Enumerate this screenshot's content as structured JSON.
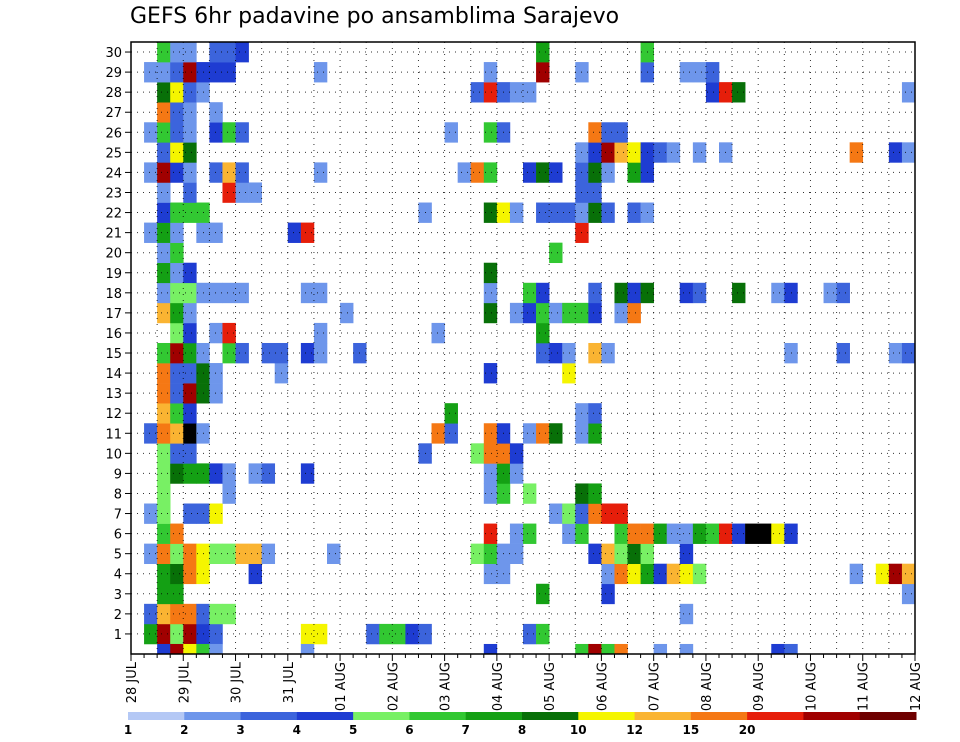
{
  "chart_data": {
    "type": "heatmap",
    "title": "GEFS 6hr padavine po ansamblima Sarajevo",
    "y_members": [
      1,
      2,
      3,
      4,
      5,
      6,
      7,
      8,
      9,
      10,
      11,
      12,
      13,
      14,
      15,
      16,
      17,
      18,
      19,
      20,
      21,
      22,
      23,
      24,
      25,
      26,
      27,
      28,
      29,
      30
    ],
    "ylim": [
      0,
      30
    ],
    "x_tick_labels": [
      "28 JUL",
      "29 JUL",
      "30 JUL",
      "31 JUL",
      "01 AUG",
      "02 AUG",
      "03 AUG",
      "04 AUG",
      "05 AUG",
      "06 AUG",
      "07 AUG",
      "08 AUG",
      "09 AUG",
      "10 AUG",
      "11 AUG",
      "12 AUG"
    ],
    "steps_per_day": 4,
    "total_steps": 60,
    "grid": true,
    "legend_position": "bottom",
    "colorbar": {
      "levels": [
        1,
        2,
        3,
        4,
        5,
        6,
        7,
        8,
        10,
        12,
        15,
        20
      ],
      "colors": [
        "#b4c8f5",
        "#6e96eb",
        "#3c64dc",
        "#1e3cd2",
        "#78f064",
        "#32c832",
        "#14a014",
        "#087008",
        "#f5f500",
        "#fab432",
        "#f57814",
        "#e61e0a",
        "#a00000",
        "#6e0000"
      ]
    },
    "cells": [
      [
        1,
        1,
        6
      ],
      [
        1,
        2,
        12
      ],
      [
        1,
        3,
        4
      ],
      [
        1,
        4,
        12
      ],
      [
        1,
        5,
        3
      ],
      [
        1,
        6,
        2
      ],
      [
        1,
        13,
        8
      ],
      [
        1,
        14,
        8
      ],
      [
        1,
        18,
        2
      ],
      [
        1,
        19,
        5
      ],
      [
        1,
        20,
        5
      ],
      [
        1,
        21,
        3
      ],
      [
        1,
        22,
        2
      ],
      [
        1,
        30,
        2
      ],
      [
        1,
        31,
        5
      ],
      [
        2,
        1,
        2
      ],
      [
        2,
        2,
        9
      ],
      [
        2,
        3,
        10
      ],
      [
        2,
        4,
        10
      ],
      [
        2,
        5,
        2
      ],
      [
        2,
        6,
        4
      ],
      [
        2,
        7,
        4
      ],
      [
        2,
        42,
        1
      ],
      [
        3,
        2,
        6
      ],
      [
        3,
        3,
        6
      ],
      [
        3,
        31,
        6
      ],
      [
        3,
        36,
        3
      ],
      [
        3,
        59,
        1
      ],
      [
        4,
        2,
        6
      ],
      [
        4,
        3,
        7
      ],
      [
        4,
        4,
        10
      ],
      [
        4,
        5,
        8
      ],
      [
        4,
        9,
        3
      ],
      [
        4,
        27,
        1
      ],
      [
        4,
        28,
        1
      ],
      [
        4,
        36,
        1
      ],
      [
        4,
        37,
        10
      ],
      [
        4,
        38,
        8
      ],
      [
        4,
        39,
        6
      ],
      [
        4,
        40,
        3
      ],
      [
        4,
        41,
        9
      ],
      [
        4,
        42,
        8
      ],
      [
        4,
        43,
        4
      ],
      [
        4,
        55,
        1
      ],
      [
        4,
        57,
        8
      ],
      [
        4,
        58,
        12
      ],
      [
        4,
        59,
        9
      ],
      [
        5,
        1,
        1
      ],
      [
        5,
        2,
        10
      ],
      [
        5,
        3,
        4
      ],
      [
        5,
        4,
        10
      ],
      [
        5,
        5,
        8
      ],
      [
        5,
        6,
        4
      ],
      [
        5,
        7,
        4
      ],
      [
        5,
        8,
        9
      ],
      [
        5,
        9,
        9
      ],
      [
        5,
        10,
        1
      ],
      [
        5,
        15,
        1
      ],
      [
        5,
        26,
        4
      ],
      [
        5,
        27,
        5
      ],
      [
        5,
        28,
        1
      ],
      [
        5,
        29,
        1
      ],
      [
        5,
        35,
        3
      ],
      [
        5,
        36,
        9
      ],
      [
        5,
        37,
        4
      ],
      [
        5,
        38,
        7
      ],
      [
        5,
        39,
        4
      ],
      [
        5,
        42,
        3
      ],
      [
        6,
        2,
        5
      ],
      [
        6,
        3,
        10
      ],
      [
        6,
        27,
        11
      ],
      [
        6,
        29,
        1
      ],
      [
        6,
        30,
        5
      ],
      [
        6,
        33,
        1
      ],
      [
        6,
        34,
        5
      ],
      [
        6,
        37,
        5
      ],
      [
        6,
        38,
        10
      ],
      [
        6,
        39,
        10
      ],
      [
        6,
        40,
        6
      ],
      [
        6,
        41,
        1
      ],
      [
        6,
        42,
        1
      ],
      [
        6,
        43,
        6
      ],
      [
        6,
        44,
        5
      ],
      [
        6,
        45,
        11
      ],
      [
        6,
        46,
        3
      ],
      [
        6,
        47,
        14
      ],
      [
        6,
        48,
        14
      ],
      [
        6,
        49,
        8
      ],
      [
        6,
        50,
        3
      ],
      [
        7,
        1,
        1
      ],
      [
        7,
        2,
        4
      ],
      [
        7,
        4,
        2
      ],
      [
        7,
        5,
        2
      ],
      [
        7,
        6,
        8
      ],
      [
        7,
        32,
        1
      ],
      [
        7,
        33,
        4
      ],
      [
        7,
        34,
        2
      ],
      [
        7,
        35,
        10
      ],
      [
        7,
        36,
        11
      ],
      [
        7,
        37,
        11
      ],
      [
        8,
        2,
        4
      ],
      [
        8,
        7,
        1
      ],
      [
        8,
        27,
        1
      ],
      [
        8,
        28,
        5
      ],
      [
        8,
        30,
        4
      ],
      [
        8,
        34,
        7
      ],
      [
        8,
        35,
        6
      ],
      [
        9,
        2,
        4
      ],
      [
        9,
        3,
        7
      ],
      [
        9,
        4,
        6
      ],
      [
        9,
        5,
        6
      ],
      [
        9,
        6,
        3
      ],
      [
        9,
        7,
        1
      ],
      [
        9,
        9,
        1
      ],
      [
        9,
        10,
        2
      ],
      [
        9,
        13,
        3
      ],
      [
        9,
        27,
        1
      ],
      [
        9,
        28,
        6
      ],
      [
        9,
        29,
        1
      ],
      [
        10,
        2,
        4
      ],
      [
        10,
        3,
        2
      ],
      [
        10,
        4,
        2
      ],
      [
        10,
        22,
        2
      ],
      [
        10,
        26,
        4
      ],
      [
        10,
        27,
        10
      ],
      [
        10,
        28,
        10
      ],
      [
        10,
        29,
        3
      ],
      [
        11,
        1,
        2
      ],
      [
        11,
        2,
        10
      ],
      [
        11,
        3,
        9
      ],
      [
        11,
        4,
        14
      ],
      [
        11,
        5,
        1
      ],
      [
        11,
        23,
        10
      ],
      [
        11,
        24,
        2
      ],
      [
        11,
        27,
        10
      ],
      [
        11,
        28,
        3
      ],
      [
        11,
        30,
        1
      ],
      [
        11,
        31,
        10
      ],
      [
        11,
        32,
        7
      ],
      [
        11,
        34,
        1
      ],
      [
        11,
        35,
        6
      ],
      [
        12,
        2,
        9
      ],
      [
        12,
        3,
        5
      ],
      [
        12,
        4,
        3
      ],
      [
        12,
        24,
        6
      ],
      [
        12,
        34,
        1
      ],
      [
        12,
        35,
        2
      ],
      [
        13,
        2,
        10
      ],
      [
        13,
        3,
        2
      ],
      [
        13,
        4,
        12
      ],
      [
        13,
        5,
        7
      ],
      [
        13,
        6,
        1
      ],
      [
        14,
        2,
        10
      ],
      [
        14,
        3,
        2
      ],
      [
        14,
        4,
        2
      ],
      [
        14,
        5,
        7
      ],
      [
        14,
        6,
        1
      ],
      [
        14,
        11,
        1
      ],
      [
        14,
        27,
        3
      ],
      [
        14,
        33,
        8
      ],
      [
        15,
        2,
        5
      ],
      [
        15,
        3,
        12
      ],
      [
        15,
        4,
        6
      ],
      [
        15,
        5,
        1
      ],
      [
        15,
        7,
        5
      ],
      [
        15,
        8,
        2
      ],
      [
        15,
        10,
        2
      ],
      [
        15,
        11,
        2
      ],
      [
        15,
        13,
        3
      ],
      [
        15,
        14,
        1
      ],
      [
        15,
        17,
        2
      ],
      [
        15,
        31,
        2
      ],
      [
        15,
        32,
        3
      ],
      [
        15,
        33,
        1
      ],
      [
        15,
        35,
        9
      ],
      [
        15,
        36,
        1
      ],
      [
        15,
        50,
        1
      ],
      [
        15,
        54,
        2
      ],
      [
        15,
        58,
        1
      ],
      [
        15,
        59,
        2
      ],
      [
        16,
        3,
        4
      ],
      [
        16,
        4,
        3
      ],
      [
        16,
        6,
        1
      ],
      [
        16,
        7,
        11
      ],
      [
        16,
        14,
        1
      ],
      [
        16,
        23,
        1
      ],
      [
        16,
        31,
        6
      ],
      [
        17,
        2,
        9
      ],
      [
        17,
        3,
        6
      ],
      [
        17,
        4,
        1
      ],
      [
        17,
        16,
        1
      ],
      [
        17,
        27,
        7
      ],
      [
        17,
        29,
        1
      ],
      [
        17,
        30,
        3
      ],
      [
        17,
        31,
        5
      ],
      [
        17,
        32,
        1
      ],
      [
        17,
        33,
        5
      ],
      [
        17,
        34,
        5
      ],
      [
        17,
        35,
        3
      ],
      [
        17,
        37,
        1
      ],
      [
        17,
        38,
        10
      ],
      [
        18,
        2,
        1
      ],
      [
        18,
        3,
        4
      ],
      [
        18,
        4,
        4
      ],
      [
        18,
        5,
        1
      ],
      [
        18,
        6,
        1
      ],
      [
        18,
        7,
        1
      ],
      [
        18,
        8,
        1
      ],
      [
        18,
        13,
        1
      ],
      [
        18,
        14,
        1
      ],
      [
        18,
        27,
        1
      ],
      [
        18,
        30,
        5
      ],
      [
        18,
        31,
        3
      ],
      [
        18,
        35,
        2
      ],
      [
        18,
        37,
        7
      ],
      [
        18,
        38,
        3
      ],
      [
        18,
        39,
        7
      ],
      [
        18,
        42,
        3
      ],
      [
        18,
        43,
        2
      ],
      [
        18,
        46,
        7
      ],
      [
        18,
        49,
        1
      ],
      [
        18,
        50,
        3
      ],
      [
        18,
        53,
        1
      ],
      [
        18,
        54,
        2
      ],
      [
        19,
        2,
        6
      ],
      [
        19,
        3,
        1
      ],
      [
        19,
        4,
        3
      ],
      [
        19,
        27,
        7
      ],
      [
        20,
        2,
        1
      ],
      [
        20,
        3,
        5
      ],
      [
        20,
        32,
        5
      ],
      [
        21,
        1,
        1
      ],
      [
        21,
        2,
        6
      ],
      [
        21,
        3,
        1
      ],
      [
        21,
        5,
        1
      ],
      [
        21,
        6,
        1
      ],
      [
        21,
        12,
        3
      ],
      [
        21,
        13,
        11
      ],
      [
        21,
        34,
        11
      ],
      [
        22,
        2,
        3
      ],
      [
        22,
        3,
        5
      ],
      [
        22,
        4,
        5
      ],
      [
        22,
        5,
        5
      ],
      [
        22,
        22,
        1
      ],
      [
        22,
        27,
        7
      ],
      [
        22,
        28,
        8
      ],
      [
        22,
        29,
        1
      ],
      [
        22,
        31,
        2
      ],
      [
        22,
        32,
        2
      ],
      [
        22,
        33,
        2
      ],
      [
        22,
        34,
        1
      ],
      [
        22,
        35,
        7
      ],
      [
        22,
        36,
        2
      ],
      [
        22,
        38,
        2
      ],
      [
        22,
        39,
        1
      ],
      [
        23,
        2,
        1
      ],
      [
        23,
        4,
        2
      ],
      [
        23,
        7,
        11
      ],
      [
        23,
        8,
        1
      ],
      [
        23,
        9,
        1
      ],
      [
        23,
        34,
        2
      ],
      [
        23,
        35,
        2
      ],
      [
        24,
        1,
        1
      ],
      [
        24,
        2,
        12
      ],
      [
        24,
        3,
        3
      ],
      [
        24,
        4,
        1
      ],
      [
        24,
        6,
        2
      ],
      [
        24,
        7,
        9
      ],
      [
        24,
        8,
        2
      ],
      [
        24,
        14,
        1
      ],
      [
        24,
        25,
        1
      ],
      [
        24,
        26,
        10
      ],
      [
        24,
        27,
        5
      ],
      [
        24,
        30,
        3
      ],
      [
        24,
        31,
        7
      ],
      [
        24,
        32,
        3
      ],
      [
        24,
        34,
        2
      ],
      [
        24,
        35,
        7
      ],
      [
        24,
        36,
        1
      ],
      [
        24,
        38,
        6
      ],
      [
        24,
        39,
        3
      ],
      [
        25,
        2,
        2
      ],
      [
        25,
        3,
        8
      ],
      [
        25,
        4,
        7
      ],
      [
        25,
        34,
        1
      ],
      [
        25,
        35,
        3
      ],
      [
        25,
        36,
        12
      ],
      [
        25,
        37,
        9
      ],
      [
        25,
        38,
        8
      ],
      [
        25,
        39,
        3
      ],
      [
        25,
        40,
        2
      ],
      [
        25,
        41,
        1
      ],
      [
        25,
        43,
        1
      ],
      [
        25,
        45,
        1
      ],
      [
        25,
        55,
        10
      ],
      [
        25,
        58,
        3
      ],
      [
        25,
        59,
        1
      ],
      [
        26,
        1,
        1
      ],
      [
        26,
        2,
        5
      ],
      [
        26,
        3,
        2
      ],
      [
        26,
        4,
        1
      ],
      [
        26,
        6,
        3
      ],
      [
        26,
        7,
        5
      ],
      [
        26,
        8,
        2
      ],
      [
        26,
        24,
        1
      ],
      [
        26,
        27,
        5
      ],
      [
        26,
        28,
        2
      ],
      [
        26,
        35,
        10
      ],
      [
        26,
        36,
        2
      ],
      [
        26,
        37,
        2
      ],
      [
        27,
        2,
        10
      ],
      [
        27,
        3,
        2
      ],
      [
        27,
        4,
        1
      ],
      [
        27,
        6,
        1
      ],
      [
        28,
        2,
        7
      ],
      [
        28,
        3,
        8
      ],
      [
        28,
        4,
        2
      ],
      [
        28,
        5,
        1
      ],
      [
        28,
        26,
        2
      ],
      [
        28,
        27,
        11
      ],
      [
        28,
        28,
        2
      ],
      [
        28,
        29,
        1
      ],
      [
        28,
        30,
        1
      ],
      [
        28,
        44,
        3
      ],
      [
        28,
        45,
        11
      ],
      [
        28,
        46,
        7
      ],
      [
        28,
        59,
        1
      ],
      [
        29,
        1,
        1
      ],
      [
        29,
        2,
        1
      ],
      [
        29,
        3,
        2
      ],
      [
        29,
        4,
        12
      ],
      [
        29,
        5,
        3
      ],
      [
        29,
        6,
        3
      ],
      [
        29,
        7,
        3
      ],
      [
        29,
        14,
        1
      ],
      [
        29,
        27,
        1
      ],
      [
        29,
        31,
        12
      ],
      [
        29,
        34,
        1
      ],
      [
        29,
        39,
        2
      ],
      [
        29,
        42,
        1
      ],
      [
        29,
        43,
        1
      ],
      [
        29,
        44,
        2
      ],
      [
        30,
        2,
        5
      ],
      [
        30,
        3,
        1
      ],
      [
        30,
        4,
        1
      ],
      [
        30,
        6,
        2
      ],
      [
        30,
        7,
        2
      ],
      [
        30,
        8,
        3
      ],
      [
        30,
        31,
        6
      ],
      [
        30,
        39,
        5
      ],
      [
        0,
        2,
        3
      ],
      [
        0,
        3,
        12
      ],
      [
        0,
        4,
        8
      ],
      [
        0,
        5,
        5
      ],
      [
        0,
        6,
        1
      ],
      [
        0,
        13,
        1
      ],
      [
        0,
        27,
        3
      ],
      [
        0,
        34,
        5
      ],
      [
        0,
        35,
        12
      ],
      [
        0,
        36,
        5
      ],
      [
        0,
        37,
        10
      ],
      [
        0,
        40,
        1
      ],
      [
        0,
        42,
        1
      ],
      [
        0,
        49,
        3
      ],
      [
        0,
        50,
        2
      ]
    ]
  }
}
